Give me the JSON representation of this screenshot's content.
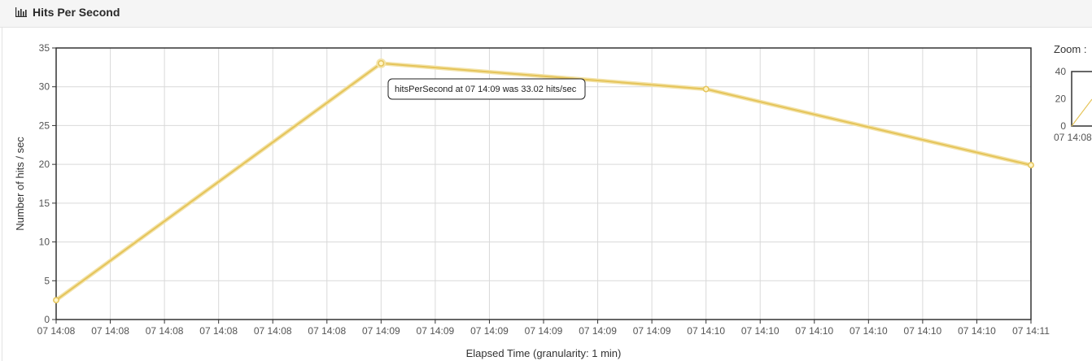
{
  "header": {
    "title": "Hits Per Second",
    "icon": "bar-chart-icon"
  },
  "chart_data": {
    "type": "line",
    "title": "",
    "xlabel": "Elapsed Time (granularity: 1 min)",
    "ylabel": "Number of hits / sec",
    "ylim": [
      0,
      35
    ],
    "yticks": [
      0,
      5,
      10,
      15,
      20,
      25,
      30,
      35
    ],
    "grid": true,
    "x_tick_labels": [
      "07 14:08",
      "07 14:08",
      "07 14:08",
      "07 14:08",
      "07 14:08",
      "07 14:08",
      "07 14:09",
      "07 14:09",
      "07 14:09",
      "07 14:09",
      "07 14:09",
      "07 14:09",
      "07 14:10",
      "07 14:10",
      "07 14:10",
      "07 14:10",
      "07 14:10",
      "07 14:10",
      "07 14:11"
    ],
    "xlim": [
      0,
      18
    ],
    "series": [
      {
        "name": "hitsPerSecond",
        "color": "#e5c45a",
        "points": [
          {
            "x": 0,
            "y": 2.5
          },
          {
            "x": 6,
            "y": 33.02
          },
          {
            "x": 12,
            "y": 29.7
          },
          {
            "x": 18,
            "y": 19.9
          }
        ]
      }
    ],
    "tooltip": {
      "text": "hitsPerSecond at 07 14:09 was 33.02 hits/sec",
      "point_index": 1
    }
  },
  "zoom": {
    "label": "Zoom :",
    "yticks": [
      0,
      20,
      40
    ],
    "x_tick_label": "07 14:08"
  }
}
